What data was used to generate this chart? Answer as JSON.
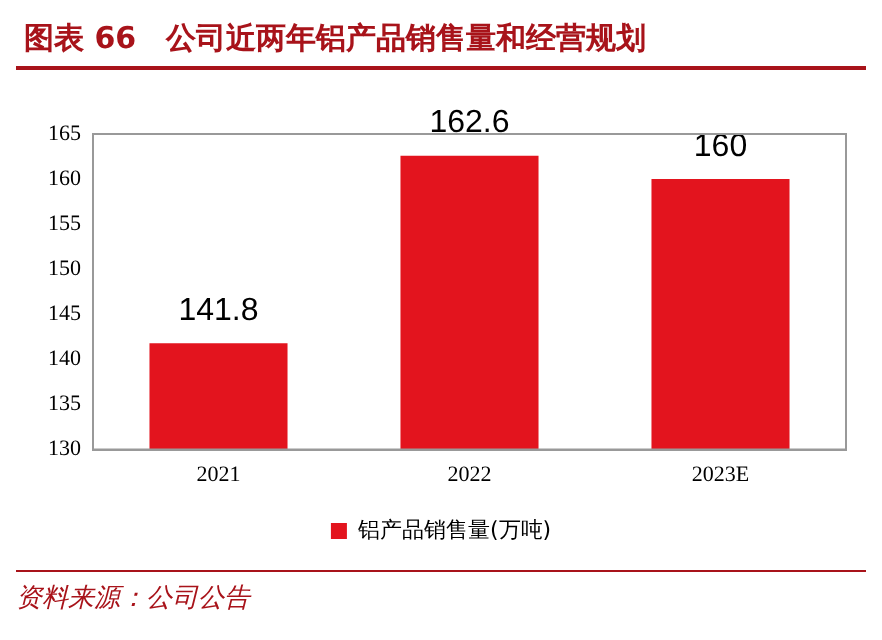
{
  "chart_data": {
    "type": "bar",
    "title": "图表 66　公司近两年铝产品销售量和经营规划",
    "categories": [
      "2021",
      "2022",
      "2023E"
    ],
    "series": [
      {
        "name": "铝产品销售量(万吨)",
        "color": "#e3141e",
        "values": [
          141.8,
          162.6,
          160
        ]
      }
    ],
    "ylim": [
      130,
      165
    ],
    "yticks": [
      130,
      135,
      140,
      145,
      150,
      155,
      160,
      165
    ],
    "grid": false,
    "legend": "bottom",
    "data_labels": true,
    "annotations": [
      "资料来源：公司公告"
    ]
  }
}
